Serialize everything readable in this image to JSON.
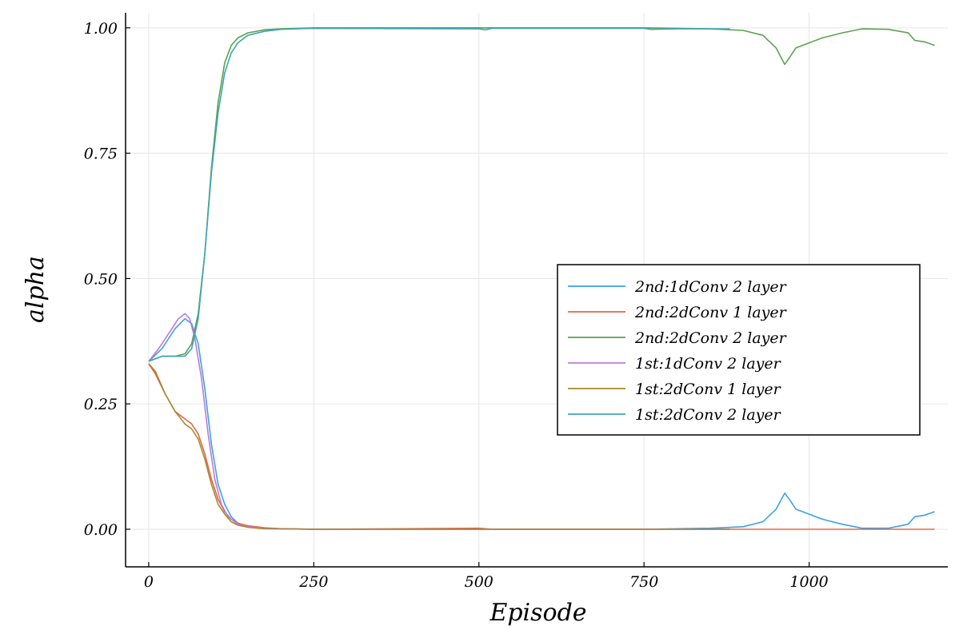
{
  "chart_data": {
    "type": "line",
    "title": "",
    "xlabel": "Episode",
    "ylabel": "alpha",
    "xlim": [
      -35,
      1210
    ],
    "ylim": [
      -0.075,
      1.03
    ],
    "grid": true,
    "legend_position": "right",
    "x_ticks": [
      {
        "value": 0,
        "label": "0"
      },
      {
        "value": 250,
        "label": "250"
      },
      {
        "value": 500,
        "label": "500"
      },
      {
        "value": 750,
        "label": "750"
      },
      {
        "value": 1000,
        "label": "1000"
      }
    ],
    "y_ticks": [
      {
        "value": 0.0,
        "label": "0.00"
      },
      {
        "value": 0.25,
        "label": "0.25"
      },
      {
        "value": 0.5,
        "label": "0.50"
      },
      {
        "value": 0.75,
        "label": "0.75"
      },
      {
        "value": 1.0,
        "label": "1.00"
      }
    ],
    "series": [
      {
        "name": "2nd:1dConv 2 layer",
        "color": "#3da0ec",
        "points": [
          [
            0,
            0.335
          ],
          [
            20,
            0.36
          ],
          [
            40,
            0.4
          ],
          [
            55,
            0.42
          ],
          [
            65,
            0.41
          ],
          [
            75,
            0.37
          ],
          [
            85,
            0.28
          ],
          [
            95,
            0.17
          ],
          [
            105,
            0.09
          ],
          [
            115,
            0.05
          ],
          [
            125,
            0.025
          ],
          [
            135,
            0.012
          ],
          [
            150,
            0.006
          ],
          [
            175,
            0.002
          ],
          [
            200,
            0.001
          ],
          [
            250,
            0.0
          ],
          [
            500,
            0.0
          ],
          [
            750,
            0.0
          ],
          [
            850,
            0.002
          ],
          [
            900,
            0.005
          ],
          [
            930,
            0.015
          ],
          [
            950,
            0.04
          ],
          [
            963,
            0.072
          ],
          [
            970,
            0.06
          ],
          [
            980,
            0.04
          ],
          [
            1000,
            0.03
          ],
          [
            1020,
            0.02
          ],
          [
            1050,
            0.01
          ],
          [
            1080,
            0.002
          ],
          [
            1120,
            0.002
          ],
          [
            1150,
            0.01
          ],
          [
            1160,
            0.025
          ],
          [
            1175,
            0.028
          ],
          [
            1190,
            0.035
          ]
        ]
      },
      {
        "name": "2nd:2dConv 1 layer",
        "color": "#e06a45",
        "points": [
          [
            0,
            0.33
          ],
          [
            10,
            0.31
          ],
          [
            25,
            0.27
          ],
          [
            40,
            0.235
          ],
          [
            55,
            0.22
          ],
          [
            65,
            0.21
          ],
          [
            75,
            0.19
          ],
          [
            85,
            0.15
          ],
          [
            95,
            0.1
          ],
          [
            105,
            0.06
          ],
          [
            115,
            0.035
          ],
          [
            125,
            0.02
          ],
          [
            135,
            0.012
          ],
          [
            150,
            0.007
          ],
          [
            175,
            0.003
          ],
          [
            200,
            0.001
          ],
          [
            250,
            0.0
          ],
          [
            500,
            0.002
          ],
          [
            520,
            0.0
          ],
          [
            750,
            0.0
          ],
          [
            1000,
            0.0
          ],
          [
            1190,
            0.0
          ]
        ]
      },
      {
        "name": "2nd:2dConv 2 layer",
        "color": "#5aa350",
        "points": [
          [
            0,
            0.335
          ],
          [
            20,
            0.345
          ],
          [
            40,
            0.345
          ],
          [
            55,
            0.35
          ],
          [
            65,
            0.37
          ],
          [
            75,
            0.43
          ],
          [
            85,
            0.55
          ],
          [
            95,
            0.72
          ],
          [
            105,
            0.85
          ],
          [
            115,
            0.93
          ],
          [
            125,
            0.965
          ],
          [
            135,
            0.98
          ],
          [
            150,
            0.99
          ],
          [
            175,
            0.996
          ],
          [
            200,
            0.998
          ],
          [
            250,
            1.0
          ],
          [
            500,
            1.0
          ],
          [
            750,
            1.0
          ],
          [
            850,
            0.998
          ],
          [
            900,
            0.995
          ],
          [
            930,
            0.985
          ],
          [
            950,
            0.96
          ],
          [
            963,
            0.927
          ],
          [
            970,
            0.94
          ],
          [
            980,
            0.96
          ],
          [
            1000,
            0.97
          ],
          [
            1020,
            0.98
          ],
          [
            1050,
            0.99
          ],
          [
            1080,
            0.998
          ],
          [
            1120,
            0.997
          ],
          [
            1150,
            0.99
          ],
          [
            1160,
            0.975
          ],
          [
            1175,
            0.972
          ],
          [
            1190,
            0.965
          ]
        ]
      },
      {
        "name": "1st:1dConv 2 layer",
        "color": "#c079d6",
        "points": [
          [
            0,
            0.335
          ],
          [
            15,
            0.36
          ],
          [
            30,
            0.39
          ],
          [
            45,
            0.42
          ],
          [
            55,
            0.43
          ],
          [
            62,
            0.42
          ],
          [
            70,
            0.38
          ],
          [
            80,
            0.3
          ],
          [
            90,
            0.19
          ],
          [
            100,
            0.1
          ],
          [
            110,
            0.05
          ],
          [
            120,
            0.025
          ],
          [
            135,
            0.01
          ],
          [
            150,
            0.005
          ],
          [
            175,
            0.002
          ],
          [
            200,
            0.001
          ],
          [
            250,
            0.0
          ],
          [
            500,
            0.0
          ],
          [
            750,
            0.0
          ],
          [
            880,
            0.0
          ]
        ]
      },
      {
        "name": "1st:2dConv 1 layer",
        "color": "#a9872d",
        "points": [
          [
            0,
            0.33
          ],
          [
            10,
            0.315
          ],
          [
            25,
            0.27
          ],
          [
            40,
            0.235
          ],
          [
            55,
            0.21
          ],
          [
            65,
            0.2
          ],
          [
            75,
            0.18
          ],
          [
            85,
            0.14
          ],
          [
            95,
            0.09
          ],
          [
            105,
            0.05
          ],
          [
            115,
            0.03
          ],
          [
            125,
            0.015
          ],
          [
            135,
            0.008
          ],
          [
            150,
            0.004
          ],
          [
            175,
            0.001
          ],
          [
            250,
            0.0
          ],
          [
            500,
            0.0
          ],
          [
            750,
            0.0
          ],
          [
            880,
            0.0
          ]
        ]
      },
      {
        "name": "1st:2dConv 2 layer",
        "color": "#3fa5b5",
        "points": [
          [
            0,
            0.335
          ],
          [
            20,
            0.345
          ],
          [
            40,
            0.345
          ],
          [
            55,
            0.345
          ],
          [
            65,
            0.36
          ],
          [
            75,
            0.42
          ],
          [
            85,
            0.55
          ],
          [
            95,
            0.71
          ],
          [
            105,
            0.83
          ],
          [
            115,
            0.91
          ],
          [
            125,
            0.95
          ],
          [
            135,
            0.97
          ],
          [
            150,
            0.985
          ],
          [
            175,
            0.993
          ],
          [
            200,
            0.997
          ],
          [
            250,
            0.999
          ],
          [
            500,
            0.998
          ],
          [
            510,
            0.996
          ],
          [
            520,
            0.999
          ],
          [
            750,
            0.999
          ],
          [
            760,
            0.997
          ],
          [
            800,
            0.998
          ],
          [
            880,
            0.998
          ]
        ]
      }
    ]
  }
}
